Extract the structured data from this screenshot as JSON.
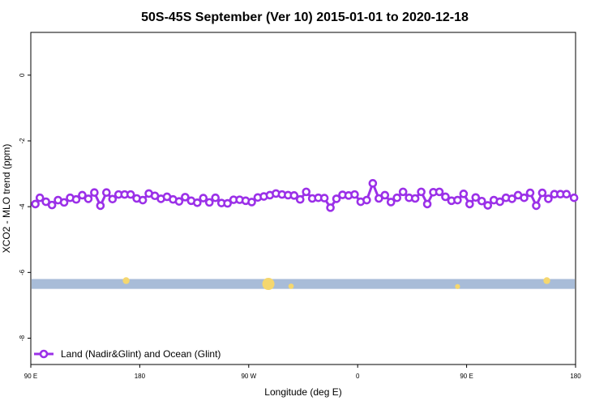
{
  "chart_data": {
    "type": "line",
    "title": "50S-45S September (Ver 10)   2015-01-01 to 2020-12-18",
    "xlabel": "Longitude (deg E)",
    "ylabel": "XCO2 - MLO trend (ppm)",
    "xlim": [
      90,
      450
    ],
    "ylim": [
      -8.8,
      1.3
    ],
    "x_ticks": [
      {
        "value": 90,
        "label": "90 E"
      },
      {
        "value": 162,
        "label": "180"
      },
      {
        "value": 234,
        "label": "90 W"
      },
      {
        "value": 306,
        "label": "0"
      },
      {
        "value": 378,
        "label": "90 E"
      },
      {
        "value": 450,
        "label": "180"
      }
    ],
    "y_ticks": [
      {
        "value": 0,
        "label": "0"
      },
      {
        "value": -2,
        "label": "-2"
      },
      {
        "value": -4,
        "label": "-4"
      },
      {
        "value": -6,
        "label": "-6"
      },
      {
        "value": -8,
        "label": "-8"
      }
    ],
    "grid": false,
    "legend": {
      "placement": "bottom-left"
    },
    "series": [
      {
        "name": "Land (Nadir&Glint) and Ocean (Glint)",
        "color": "#9b30e8",
        "marker": "open-circle",
        "x": [
          93,
          96,
          100,
          104,
          108,
          112,
          116,
          120,
          124,
          128,
          132,
          136,
          140,
          144,
          148,
          152,
          156,
          160,
          164,
          168,
          172,
          176,
          180,
          184,
          188,
          192,
          196,
          200,
          204,
          208,
          212,
          216,
          220,
          224,
          228,
          232,
          236,
          240,
          244,
          248,
          252,
          256,
          260,
          264,
          268,
          272,
          276,
          280,
          284,
          288,
          292,
          296,
          300,
          304,
          308,
          312,
          316,
          320,
          324,
          328,
          332,
          336,
          340,
          344,
          348,
          352,
          356,
          360,
          364,
          368,
          372,
          376,
          380,
          384,
          388,
          392,
          396,
          400,
          404,
          408,
          412,
          416,
          420,
          424,
          428,
          432,
          436,
          440,
          444,
          449
        ],
        "y": [
          -3.92,
          -3.73,
          -3.85,
          -3.95,
          -3.8,
          -3.87,
          -3.73,
          -3.78,
          -3.65,
          -3.76,
          -3.57,
          -3.97,
          -3.57,
          -3.77,
          -3.63,
          -3.63,
          -3.63,
          -3.75,
          -3.8,
          -3.6,
          -3.67,
          -3.76,
          -3.7,
          -3.78,
          -3.84,
          -3.71,
          -3.82,
          -3.88,
          -3.74,
          -3.87,
          -3.73,
          -3.89,
          -3.9,
          -3.79,
          -3.79,
          -3.82,
          -3.86,
          -3.72,
          -3.69,
          -3.65,
          -3.6,
          -3.63,
          -3.65,
          -3.66,
          -3.78,
          -3.55,
          -3.75,
          -3.73,
          -3.74,
          -4.03,
          -3.76,
          -3.64,
          -3.66,
          -3.63,
          -3.85,
          -3.8,
          -3.29,
          -3.75,
          -3.65,
          -3.86,
          -3.73,
          -3.55,
          -3.73,
          -3.75,
          -3.55,
          -3.92,
          -3.56,
          -3.55,
          -3.7,
          -3.82,
          -3.8,
          -3.61,
          -3.92,
          -3.72,
          -3.83,
          -3.96,
          -3.8,
          -3.85,
          -3.73,
          -3.76,
          -3.65,
          -3.73,
          -3.58,
          -3.97,
          -3.58,
          -3.76,
          -3.62,
          -3.62,
          -3.62,
          -3.73
        ]
      }
    ],
    "coverage_band": {
      "color": "#a8bcd8",
      "y_range": [
        -6.2,
        -6.5
      ],
      "highlights": [
        {
          "x": 153,
          "y": -6.25,
          "size": 1,
          "color": "#f5d76e"
        },
        {
          "x": 247,
          "y": -6.35,
          "size": 2.5,
          "color": "#f5d76e"
        },
        {
          "x": 262,
          "y": -6.42,
          "size": 0.6,
          "color": "#f5d76e"
        },
        {
          "x": 372,
          "y": -6.43,
          "size": 0.5,
          "color": "#f5d76e"
        },
        {
          "x": 431,
          "y": -6.25,
          "size": 1,
          "color": "#f5d76e"
        }
      ]
    }
  }
}
